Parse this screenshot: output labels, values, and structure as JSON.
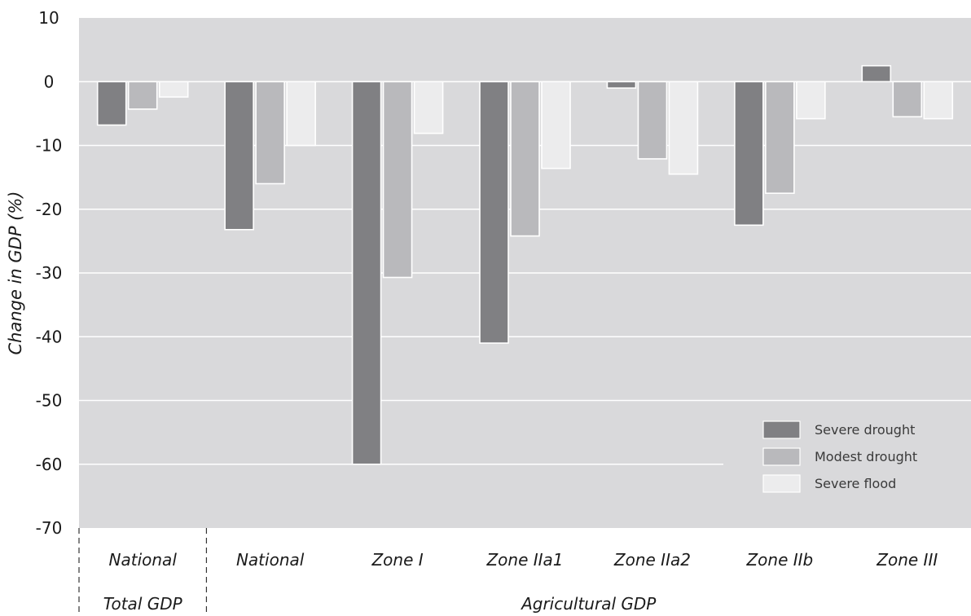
{
  "chart_data": {
    "type": "bar",
    "ylabel": "Change in GDP (%)",
    "ylim": [
      -70,
      10
    ],
    "yticks": [
      10,
      0,
      -10,
      -20,
      -30,
      -40,
      -50,
      -60,
      -70
    ],
    "yticks_text": [
      "10",
      "0",
      "-10",
      "-20",
      "-30",
      "-40",
      "-50",
      "-60",
      "-70"
    ],
    "grid": true,
    "legend_position": "bottom-right",
    "categories": [
      "National",
      "National",
      "Zone I",
      "Zone IIa1",
      "Zone IIa2",
      "Zone IIb",
      "Zone III"
    ],
    "groups": [
      {
        "label": "Total GDP",
        "categories": [
          "National"
        ]
      },
      {
        "label": "Agricultural GDP",
        "categories": [
          "National",
          "Zone I",
          "Zone IIa1",
          "Zone IIa2",
          "Zone IIb",
          "Zone III"
        ]
      }
    ],
    "series": [
      {
        "name": "Severe drought",
        "color": "#808083",
        "values": [
          -6.8,
          -23.2,
          -60.0,
          -41.0,
          -1.0,
          -22.5,
          2.5
        ]
      },
      {
        "name": "Modest drought",
        "color": "#b9b9bc",
        "values": [
          -4.3,
          -16.0,
          -30.7,
          -24.2,
          -12.1,
          -17.5,
          -5.5
        ]
      },
      {
        "name": "Severe flood",
        "color": "#ececed",
        "values": [
          -2.4,
          -10.0,
          -8.1,
          -13.6,
          -14.5,
          -5.8,
          -5.8
        ]
      }
    ],
    "colors": {
      "plot_background": "#d9d9db",
      "gridline": "#ffffff",
      "text": "#1a1a1a"
    }
  }
}
